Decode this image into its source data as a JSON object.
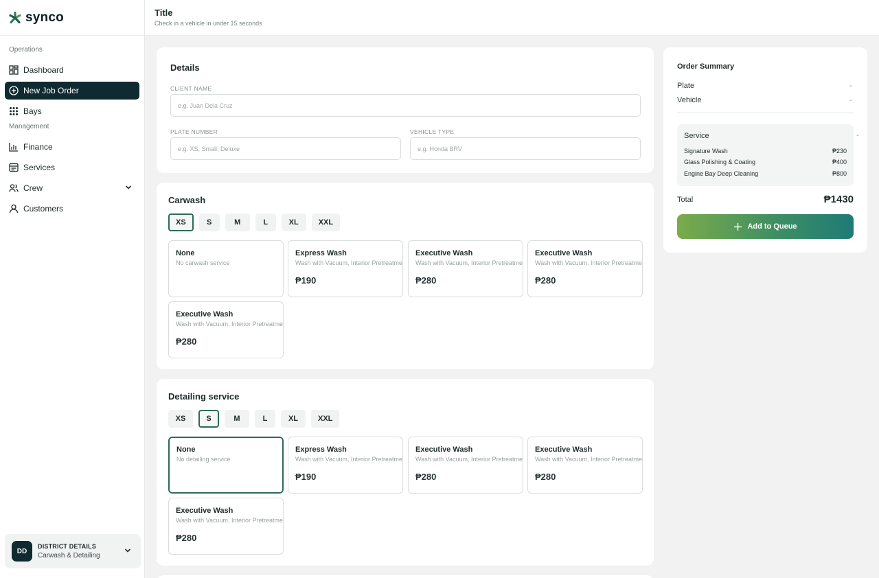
{
  "app": {
    "brand": "synco"
  },
  "header": {
    "title": "Title",
    "subtitle": "Check in a vehicle in under 15 seconds"
  },
  "sidebar": {
    "sections": [
      "Operations",
      "Management"
    ],
    "items": [
      {
        "label": "Dashboard",
        "icon": "dashboard-icon"
      },
      {
        "label": "New Job Order",
        "icon": "plus-circle-icon",
        "active": true
      },
      {
        "label": "Bays",
        "icon": "grid-icon"
      },
      {
        "label": "Finance",
        "icon": "chart-icon"
      },
      {
        "label": "Services",
        "icon": "list-icon"
      },
      {
        "label": "Crew",
        "icon": "users-icon"
      },
      {
        "label": "Customers",
        "icon": "user-icon"
      }
    ],
    "district": {
      "initials": "DD",
      "title": "DISTRICT DETAILS",
      "subtitle": "Carwash & Detailing"
    }
  },
  "details": {
    "title": "Details",
    "client_label": "CLIENT NAME",
    "client_placeholder": "e.g. Juan Dela Cruz",
    "plate_label": "PLATE NUMBER",
    "plate_placeholder": "e.g. XS, Small, Deluxe",
    "vehicle_label": "VEHICLE TYPE",
    "vehicle_placeholder": "e.g. Honda BRV"
  },
  "carwash": {
    "title": "Carwash",
    "sizes": [
      "XS",
      "S",
      "M",
      "L",
      "XL",
      "XXL"
    ],
    "selected_size": "XS",
    "services": [
      {
        "name": "None",
        "desc": "No carwash service",
        "price": ""
      },
      {
        "name": "Express Wash",
        "desc": "Wash with Vacuum, Interior Pretreatment",
        "price": "₱190"
      },
      {
        "name": "Executive Wash",
        "desc": "Wash with Vacuum, Interior Pretreatment",
        "price": "₱280"
      },
      {
        "name": "Executive Wash",
        "desc": "Wash with Vacuum, Interior Pretreatment",
        "price": "₱280"
      },
      {
        "name": "Executive Wash",
        "desc": "Wash with Vacuum, Interior Pretreatment",
        "price": "₱280"
      }
    ]
  },
  "detailing": {
    "title": "Detailing service",
    "sizes": [
      "XS",
      "S",
      "M",
      "L",
      "XL",
      "XXL"
    ],
    "selected_size": "S",
    "services": [
      {
        "name": "None",
        "desc": "No detailing service",
        "price": ""
      },
      {
        "name": "Express Wash",
        "desc": "Wash with Vacuum, Interior Pretreatment",
        "price": "₱190"
      },
      {
        "name": "Executive Wash",
        "desc": "Wash with Vacuum, Interior Pretreatment",
        "price": "₱280"
      },
      {
        "name": "Executive Wash",
        "desc": "Wash with Vacuum, Interior Pretreatment",
        "price": "₱280"
      },
      {
        "name": "Executive Wash",
        "desc": "Wash with Vacuum, Interior Pretreatment",
        "price": "₱280"
      }
    ]
  },
  "summary": {
    "title": "Order Summary",
    "plate_label": "Plate",
    "plate_value": "-",
    "vehicle_label": "Vehicle",
    "vehicle_value": "-",
    "service_label": "Service",
    "service_value": "-",
    "lines": [
      {
        "name": "Signature Wash",
        "price": "₱230"
      },
      {
        "name": "Glass Polishing & Coating",
        "price": "₱400"
      },
      {
        "name": "Engine Bay Deep Cleaning",
        "price": "₱800"
      }
    ],
    "total_label": "Total",
    "total_value": "₱1430",
    "cta": "Add to Queue"
  },
  "colors": {
    "primary_dark": "#0f2a30",
    "accent_green": "#2e6b55",
    "gradient_start": "#7bab4a",
    "gradient_end": "#1f7a78"
  }
}
